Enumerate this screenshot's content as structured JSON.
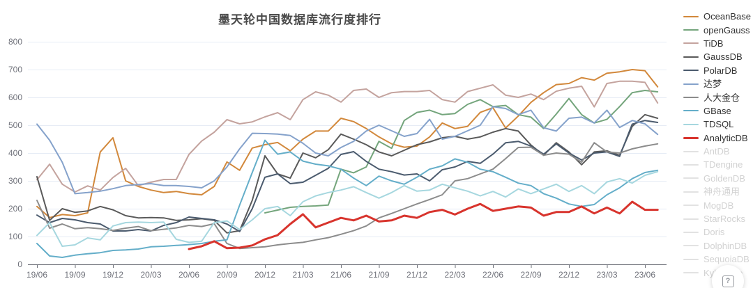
{
  "title": "墨天轮中国数据库流行度排行",
  "help_label": "?",
  "colors": {
    "axis_label": "#6E7079",
    "axis_line": "#6E7079",
    "grid_line": "#E6ECF5",
    "inactive_swatch": "#e2e2e2"
  },
  "chart_data": {
    "type": "line",
    "title": "墨天轮中国数据库流行度排行",
    "xlabel": "",
    "ylabel": "",
    "ylim": [
      0,
      800
    ],
    "y_ticks": [
      0,
      100,
      200,
      300,
      400,
      500,
      600,
      700,
      800
    ],
    "grid": true,
    "legend_position": "right",
    "x_tick_every": 3,
    "x": [
      "19/06",
      "19/07",
      "19/08",
      "19/09",
      "19/10",
      "19/11",
      "19/12",
      "20/01",
      "20/02",
      "20/03",
      "20/04",
      "20/05",
      "20/06",
      "20/07",
      "20/08",
      "20/09",
      "20/10",
      "20/11",
      "20/12",
      "21/01",
      "21/02",
      "21/03",
      "21/04",
      "21/05",
      "21/06",
      "21/07",
      "21/08",
      "21/09",
      "21/10",
      "21/11",
      "21/12",
      "22/01",
      "22/02",
      "22/03",
      "22/04",
      "22/05",
      "22/06",
      "22/07",
      "22/08",
      "22/09",
      "22/10",
      "22/11",
      "22/12",
      "23/01",
      "23/02",
      "23/03",
      "23/04",
      "23/05",
      "23/06",
      "23/07"
    ],
    "series": [
      {
        "name": "OceanBase",
        "color": "#D2883B",
        "width": 2,
        "values": [
          208,
          168,
          179,
          175,
          185,
          404,
          455,
          300,
          280,
          267,
          258,
          262,
          254,
          250,
          280,
          368,
          338,
          418,
          430,
          438,
          408,
          450,
          479,
          479,
          525,
          513,
          488,
          458,
          433,
          421,
          425,
          458,
          508,
          488,
          496,
          546,
          563,
          490,
          533,
          582,
          617,
          646,
          650,
          671,
          662,
          687,
          692,
          700,
          696,
          638
        ]
      },
      {
        "name": "openGauss",
        "color": "#74A57C",
        "width": 2,
        "values": [
          null,
          null,
          null,
          null,
          null,
          null,
          null,
          null,
          null,
          null,
          null,
          null,
          null,
          null,
          null,
          null,
          null,
          null,
          185,
          195,
          205,
          208,
          210,
          213,
          342,
          329,
          350,
          442,
          417,
          517,
          546,
          554,
          538,
          542,
          575,
          592,
          567,
          571,
          538,
          529,
          488,
          540,
          596,
          538,
          508,
          521,
          567,
          617,
          625,
          620
        ]
      },
      {
        "name": "TiDB",
        "color": "#C4A39E",
        "width": 2,
        "values": [
          304,
          360,
          288,
          260,
          282,
          267,
          312,
          345,
          283,
          295,
          305,
          305,
          395,
          443,
          475,
          520,
          505,
          512,
          530,
          545,
          520,
          592,
          620,
          608,
          583,
          625,
          630,
          600,
          617,
          621,
          621,
          625,
          592,
          583,
          621,
          633,
          645,
          608,
          600,
          612,
          592,
          622,
          633,
          640,
          566,
          650,
          658,
          658,
          654,
          580
        ]
      },
      {
        "name": "GaussDB",
        "color": "#5A5A5A",
        "width": 2,
        "values": [
          315,
          158,
          200,
          187,
          192,
          208,
          196,
          175,
          167,
          168,
          167,
          158,
          160,
          164,
          158,
          113,
          121,
          230,
          390,
          325,
          310,
          400,
          383,
          412,
          468,
          450,
          430,
          404,
          390,
          410,
          430,
          440,
          455,
          460,
          450,
          458,
          475,
          488,
          479,
          429,
          392,
          437,
          404,
          358,
          404,
          408,
          392,
          496,
          538,
          525
        ]
      },
      {
        "name": "PolarDB",
        "color": "#4B5B6E",
        "width": 2,
        "values": [
          177,
          150,
          165,
          160,
          150,
          145,
          120,
          120,
          125,
          120,
          140,
          150,
          170,
          165,
          160,
          145,
          118,
          200,
          313,
          325,
          290,
          295,
          320,
          345,
          395,
          405,
          370,
          342,
          333,
          321,
          325,
          300,
          340,
          350,
          370,
          363,
          396,
          437,
          442,
          425,
          396,
          433,
          400,
          375,
          400,
          404,
          388,
          504,
          517,
          510
        ]
      },
      {
        "name": "达梦",
        "color": "#85A2CB",
        "width": 2,
        "values": [
          504,
          446,
          367,
          254,
          258,
          263,
          272,
          283,
          287,
          290,
          283,
          283,
          280,
          275,
          300,
          350,
          415,
          471,
          470,
          468,
          463,
          435,
          400,
          390,
          420,
          442,
          479,
          500,
          480,
          460,
          470,
          521,
          450,
          460,
          480,
          500,
          567,
          560,
          538,
          554,
          491,
          479,
          525,
          529,
          508,
          554,
          492,
          517,
          505,
          467
        ]
      },
      {
        "name": "人大金仓",
        "color": "#8C8C8C",
        "width": 2,
        "values": [
          230,
          130,
          145,
          128,
          132,
          128,
          122,
          130,
          136,
          121,
          126,
          131,
          140,
          136,
          146,
          75,
          57,
          60,
          63,
          70,
          75,
          79,
          88,
          96,
          108,
          121,
          138,
          167,
          183,
          200,
          217,
          233,
          250,
          300,
          308,
          325,
          342,
          380,
          420,
          421,
          392,
          400,
          396,
          367,
          437,
          404,
          400,
          415,
          425,
          433
        ]
      },
      {
        "name": "GBase",
        "color": "#64AEC9",
        "width": 2,
        "values": [
          75,
          30,
          25,
          33,
          38,
          42,
          50,
          52,
          55,
          63,
          65,
          68,
          71,
          75,
          83,
          88,
          213,
          330,
          446,
          396,
          404,
          371,
          360,
          354,
          342,
          310,
          283,
          317,
          300,
          288,
          313,
          342,
          354,
          379,
          367,
          342,
          333,
          313,
          292,
          283,
          254,
          238,
          217,
          208,
          215,
          250,
          275,
          308,
          330,
          338
        ]
      },
      {
        "name": "TDSQL",
        "color": "#A6D7DF",
        "width": 2,
        "values": [
          104,
          150,
          65,
          70,
          95,
          88,
          138,
          150,
          152,
          150,
          152,
          90,
          79,
          83,
          150,
          156,
          125,
          160,
          200,
          208,
          175,
          225,
          246,
          258,
          267,
          279,
          258,
          238,
          258,
          283,
          263,
          267,
          288,
          275,
          263,
          246,
          262,
          242,
          271,
          254,
          271,
          288,
          262,
          283,
          254,
          296,
          308,
          292,
          320,
          333
        ]
      },
      {
        "name": "AnalyticDB",
        "color": "#D8342D",
        "width": 3,
        "values": [
          null,
          null,
          null,
          null,
          null,
          null,
          null,
          null,
          null,
          null,
          null,
          null,
          55,
          65,
          83,
          58,
          60,
          68,
          90,
          105,
          145,
          180,
          133,
          150,
          167,
          158,
          175,
          154,
          158,
          175,
          167,
          188,
          196,
          179,
          200,
          217,
          192,
          200,
          208,
          204,
          175,
          188,
          188,
          208,
          183,
          204,
          183,
          225,
          196,
          196
        ]
      }
    ],
    "legend_inactive": [
      "AntDB",
      "TDengine",
      "GoldenDB",
      "神舟通用",
      "MogDB",
      "StarRocks",
      "Doris",
      "DolphinDB",
      "SequoiaDB",
      "Kyligence"
    ]
  }
}
